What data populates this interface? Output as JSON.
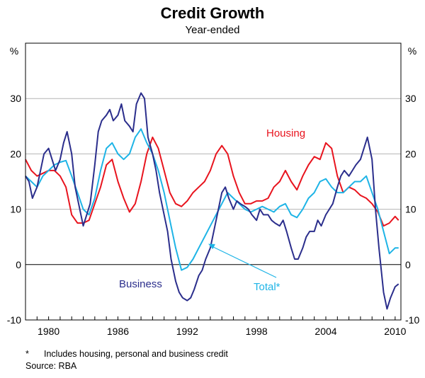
{
  "chart_data": {
    "type": "line",
    "title": "Credit Growth",
    "subtitle": "Year-ended",
    "ylabel_left": "%",
    "ylabel_right": "%",
    "ylim": [
      -10,
      40
    ],
    "yticks": [
      -10,
      0,
      10,
      20,
      30
    ],
    "xlim": [
      1978.0,
      2010.5
    ],
    "xticks": [
      1980,
      1986,
      1992,
      1998,
      2004,
      2010
    ],
    "grid": true,
    "series": [
      {
        "name": "Housing",
        "color": "#e8141e",
        "points": [
          [
            1978.0,
            19
          ],
          [
            1978.5,
            17
          ],
          [
            1979.0,
            16
          ],
          [
            1979.5,
            16.5
          ],
          [
            1980.0,
            17
          ],
          [
            1980.5,
            17
          ],
          [
            1981.0,
            16
          ],
          [
            1981.5,
            14
          ],
          [
            1982.0,
            9
          ],
          [
            1982.5,
            7.5
          ],
          [
            1983.0,
            7.5
          ],
          [
            1983.5,
            8
          ],
          [
            1984.0,
            11
          ],
          [
            1984.5,
            14
          ],
          [
            1985.0,
            18
          ],
          [
            1985.5,
            19
          ],
          [
            1986.0,
            15
          ],
          [
            1986.5,
            12
          ],
          [
            1987.0,
            9.5
          ],
          [
            1987.5,
            11
          ],
          [
            1988.0,
            15
          ],
          [
            1988.5,
            20
          ],
          [
            1989.0,
            23
          ],
          [
            1989.5,
            21
          ],
          [
            1990.0,
            17
          ],
          [
            1990.5,
            13
          ],
          [
            1991.0,
            11
          ],
          [
            1991.5,
            10.5
          ],
          [
            1992.0,
            11.5
          ],
          [
            1992.5,
            13
          ],
          [
            1993.0,
            14
          ],
          [
            1993.5,
            15
          ],
          [
            1994.0,
            17
          ],
          [
            1994.5,
            20
          ],
          [
            1995.0,
            21.5
          ],
          [
            1995.5,
            20
          ],
          [
            1996.0,
            16
          ],
          [
            1996.5,
            13
          ],
          [
            1997.0,
            11
          ],
          [
            1997.5,
            11
          ],
          [
            1998.0,
            11.5
          ],
          [
            1998.5,
            11.5
          ],
          [
            1999.0,
            12
          ],
          [
            1999.5,
            14
          ],
          [
            2000.0,
            15
          ],
          [
            2000.5,
            17
          ],
          [
            2001.0,
            15
          ],
          [
            2001.5,
            13.5
          ],
          [
            2002.0,
            16
          ],
          [
            2002.5,
            18
          ],
          [
            2003.0,
            19.5
          ],
          [
            2003.5,
            19
          ],
          [
            2004.0,
            22
          ],
          [
            2004.5,
            21
          ],
          [
            2005.0,
            16
          ],
          [
            2005.5,
            13
          ],
          [
            2006.0,
            14
          ],
          [
            2006.5,
            13.5
          ],
          [
            2007.0,
            12.5
          ],
          [
            2007.5,
            12
          ],
          [
            2008.0,
            11
          ],
          [
            2008.5,
            9.5
          ],
          [
            2009.0,
            7
          ],
          [
            2009.5,
            7.5
          ],
          [
            2010.0,
            8.7
          ],
          [
            2010.3,
            8
          ]
        ]
      },
      {
        "name": "Total*",
        "color": "#1eb4e6",
        "points": [
          [
            1978.0,
            16
          ],
          [
            1978.5,
            15
          ],
          [
            1979.0,
            14
          ],
          [
            1979.5,
            16
          ],
          [
            1980.0,
            17
          ],
          [
            1980.5,
            18
          ],
          [
            1981.0,
            18.5
          ],
          [
            1981.5,
            18.8
          ],
          [
            1982.0,
            16
          ],
          [
            1982.5,
            13
          ],
          [
            1983.0,
            10
          ],
          [
            1983.5,
            9
          ],
          [
            1984.0,
            12
          ],
          [
            1984.5,
            17
          ],
          [
            1985.0,
            21
          ],
          [
            1985.5,
            22
          ],
          [
            1986.0,
            20
          ],
          [
            1986.5,
            19
          ],
          [
            1987.0,
            20
          ],
          [
            1987.5,
            23
          ],
          [
            1988.0,
            24.5
          ],
          [
            1988.5,
            22
          ],
          [
            1989.0,
            20
          ],
          [
            1989.5,
            17
          ],
          [
            1990.0,
            13
          ],
          [
            1990.5,
            8
          ],
          [
            1991.0,
            3
          ],
          [
            1991.5,
            -1
          ],
          [
            1992.0,
            -0.5
          ],
          [
            1992.5,
            1
          ],
          [
            1993.0,
            3
          ],
          [
            1993.5,
            5
          ],
          [
            1994.0,
            7
          ],
          [
            1994.5,
            9
          ],
          [
            1995.0,
            11
          ],
          [
            1995.5,
            13
          ],
          [
            1996.0,
            12
          ],
          [
            1996.5,
            11
          ],
          [
            1997.0,
            10
          ],
          [
            1997.5,
            9.5
          ],
          [
            1998.0,
            10
          ],
          [
            1998.5,
            10.5
          ],
          [
            1999.0,
            10
          ],
          [
            1999.5,
            9.5
          ],
          [
            2000.0,
            10.5
          ],
          [
            2000.5,
            11
          ],
          [
            2001.0,
            9
          ],
          [
            2001.5,
            8.5
          ],
          [
            2002.0,
            10
          ],
          [
            2002.5,
            12
          ],
          [
            2003.0,
            13
          ],
          [
            2003.5,
            15
          ],
          [
            2004.0,
            15.5
          ],
          [
            2004.5,
            14
          ],
          [
            2005.0,
            13
          ],
          [
            2005.5,
            13
          ],
          [
            2006.0,
            14
          ],
          [
            2006.5,
            15
          ],
          [
            2007.0,
            15
          ],
          [
            2007.5,
            16
          ],
          [
            2008.0,
            13
          ],
          [
            2008.5,
            10
          ],
          [
            2009.0,
            6
          ],
          [
            2009.5,
            2
          ],
          [
            2010.0,
            3
          ],
          [
            2010.3,
            3
          ]
        ]
      },
      {
        "name": "Business",
        "color": "#2b2e8c",
        "points": [
          [
            1978.0,
            16
          ],
          [
            1978.3,
            15
          ],
          [
            1978.6,
            12
          ],
          [
            1979.0,
            14
          ],
          [
            1979.3,
            17
          ],
          [
            1979.6,
            20
          ],
          [
            1980.0,
            21
          ],
          [
            1980.3,
            19
          ],
          [
            1980.6,
            17
          ],
          [
            1981.0,
            19
          ],
          [
            1981.3,
            22
          ],
          [
            1981.6,
            24
          ],
          [
            1982.0,
            20
          ],
          [
            1982.3,
            14
          ],
          [
            1982.6,
            11
          ],
          [
            1983.0,
            7
          ],
          [
            1983.3,
            9
          ],
          [
            1983.6,
            11
          ],
          [
            1984.0,
            18
          ],
          [
            1984.3,
            24
          ],
          [
            1984.6,
            26
          ],
          [
            1985.0,
            27
          ],
          [
            1985.3,
            28
          ],
          [
            1985.6,
            26
          ],
          [
            1986.0,
            27
          ],
          [
            1986.3,
            29
          ],
          [
            1986.6,
            26
          ],
          [
            1987.0,
            25
          ],
          [
            1987.3,
            24
          ],
          [
            1987.6,
            29
          ],
          [
            1988.0,
            31
          ],
          [
            1988.3,
            30
          ],
          [
            1988.6,
            23
          ],
          [
            1989.0,
            20
          ],
          [
            1989.3,
            17
          ],
          [
            1989.6,
            13
          ],
          [
            1990.0,
            9
          ],
          [
            1990.3,
            6
          ],
          [
            1990.6,
            1
          ],
          [
            1991.0,
            -3
          ],
          [
            1991.3,
            -5
          ],
          [
            1991.6,
            -6
          ],
          [
            1992.0,
            -6.5
          ],
          [
            1992.3,
            -6
          ],
          [
            1992.6,
            -4.5
          ],
          [
            1993.0,
            -2
          ],
          [
            1993.3,
            -1
          ],
          [
            1993.6,
            1
          ],
          [
            1994.0,
            3
          ],
          [
            1994.3,
            6
          ],
          [
            1994.6,
            9
          ],
          [
            1995.0,
            13
          ],
          [
            1995.3,
            14
          ],
          [
            1995.6,
            12
          ],
          [
            1996.0,
            10
          ],
          [
            1996.3,
            11.5
          ],
          [
            1996.6,
            11
          ],
          [
            1997.0,
            10.5
          ],
          [
            1997.3,
            10
          ],
          [
            1997.6,
            9
          ],
          [
            1998.0,
            8
          ],
          [
            1998.3,
            10
          ],
          [
            1998.6,
            9
          ],
          [
            1999.0,
            9
          ],
          [
            1999.3,
            8
          ],
          [
            1999.6,
            7.5
          ],
          [
            2000.0,
            7
          ],
          [
            2000.3,
            8
          ],
          [
            2000.6,
            6
          ],
          [
            2001.0,
            3
          ],
          [
            2001.3,
            1
          ],
          [
            2001.6,
            1
          ],
          [
            2002.0,
            3
          ],
          [
            2002.3,
            5
          ],
          [
            2002.6,
            6
          ],
          [
            2003.0,
            6
          ],
          [
            2003.3,
            8
          ],
          [
            2003.6,
            7
          ],
          [
            2004.0,
            9
          ],
          [
            2004.3,
            10
          ],
          [
            2004.6,
            11
          ],
          [
            2005.0,
            14
          ],
          [
            2005.3,
            16
          ],
          [
            2005.6,
            17
          ],
          [
            2006.0,
            16
          ],
          [
            2006.3,
            17
          ],
          [
            2006.6,
            18
          ],
          [
            2007.0,
            19
          ],
          [
            2007.3,
            21
          ],
          [
            2007.6,
            23
          ],
          [
            2008.0,
            19
          ],
          [
            2008.3,
            10
          ],
          [
            2008.6,
            3
          ],
          [
            2009.0,
            -5
          ],
          [
            2009.3,
            -8
          ],
          [
            2009.6,
            -6
          ],
          [
            2010.0,
            -4
          ],
          [
            2010.3,
            -3.5
          ]
        ]
      }
    ],
    "annotations": {
      "housing_label": "Housing",
      "business_label": "Business",
      "total_label": "Total*"
    }
  },
  "footnote": {
    "marker": "*",
    "text": "Includes housing, personal and business credit"
  },
  "source": "Source: RBA"
}
